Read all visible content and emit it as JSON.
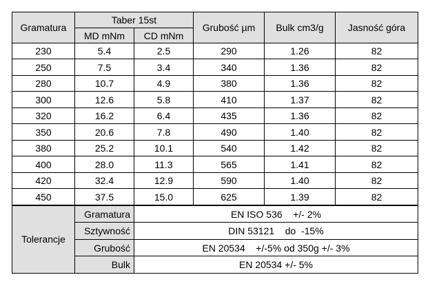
{
  "table": {
    "headers": {
      "gramatura": "Gramatura",
      "taber": "Taber 15st",
      "md": "MD mNm",
      "cd": "CD mNm",
      "grubosc": "Grubość µm",
      "bulk": "Bulk cm3/g",
      "jasnosc": "Jasność góra"
    },
    "rows": [
      [
        "230",
        "5.4",
        "2.5",
        "290",
        "1.26",
        "82"
      ],
      [
        "250",
        "7.5",
        "3.4",
        "340",
        "1.36",
        "82"
      ],
      [
        "280",
        "10.7",
        "4.9",
        "380",
        "1.36",
        "82"
      ],
      [
        "300",
        "12.6",
        "5.8",
        "410",
        "1.37",
        "82"
      ],
      [
        "320",
        "16.2",
        "6.4",
        "435",
        "1.36",
        "82"
      ],
      [
        "350",
        "20.6",
        "7.8",
        "490",
        "1.40",
        "82"
      ],
      [
        "380",
        "25.2",
        "10.1",
        "540",
        "1.42",
        "82"
      ],
      [
        "400",
        "28.0",
        "11.3",
        "565",
        "1.41",
        "82"
      ],
      [
        "420",
        "32.4",
        "12.9",
        "590",
        "1.40",
        "82"
      ],
      [
        "450",
        "37.5",
        "15.0",
        "625",
        "1.39",
        "82"
      ]
    ],
    "tolerances": {
      "label": "Tolerancje",
      "items": [
        {
          "name": "Gramatura",
          "value": "EN ISO 536    +/- 2%"
        },
        {
          "name": "Sztywność",
          "value": "DIN 53121    do  -15%"
        },
        {
          "name": "Grubość",
          "value": "EN 20534    +/-5% od 350g +/- 3%"
        },
        {
          "name": "Bulk",
          "value": "EN 20534 +/- 5%"
        }
      ]
    }
  }
}
